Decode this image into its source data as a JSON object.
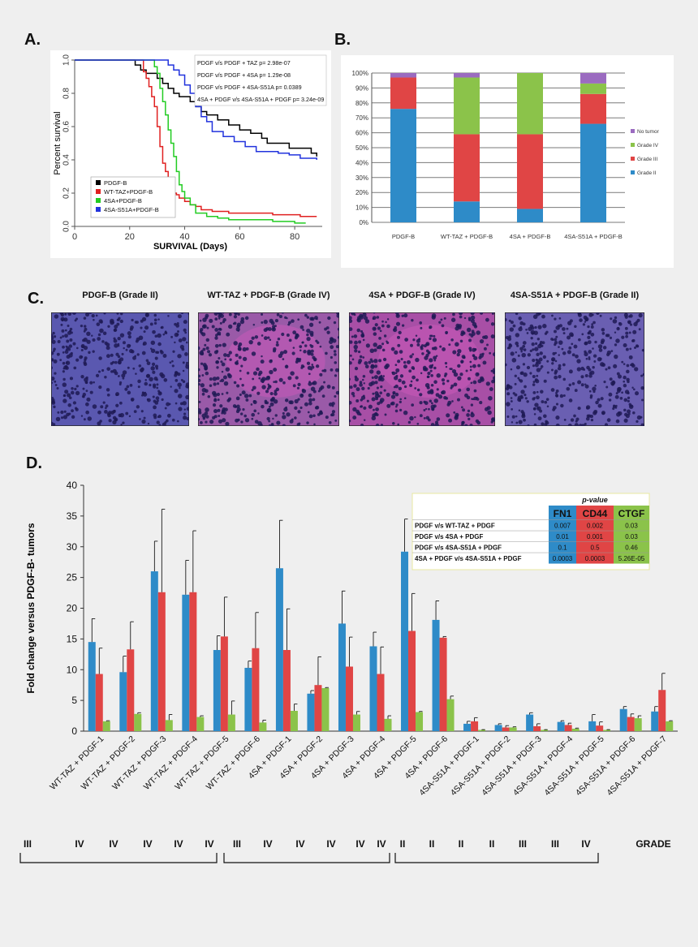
{
  "panel_labels": {
    "a": "A.",
    "b": "B.",
    "c": "C.",
    "d": "D."
  },
  "chart_data": [
    {
      "id": "A",
      "type": "line",
      "xlabel": "SURVIVAL (Days)",
      "ylabel": "Percent survival",
      "xlim": [
        0,
        90
      ],
      "ylim": [
        0,
        1.0
      ],
      "xticks": [
        "0",
        "20",
        "40",
        "60",
        "80"
      ],
      "yticks": [
        "0.0",
        "0.2",
        "0.4",
        "0.6",
        "0.8",
        "1.0"
      ],
      "legend_position": "bottom-left",
      "annotations": [
        "PDGF v/s PDGF + TAZ  p= 2.98e-07",
        "PDGF v/s PDGF + 4SA p= 1.29e-08",
        "PDGF v/s PDGF + 4SA-S51A  p= 0.0389",
        "4SA + PDGF v/s 4SA-S51A + PDGF p= 3.24e-09"
      ],
      "series": [
        {
          "name": "PDGF-B",
          "color": "#000000",
          "x": [
            0,
            20,
            22,
            24,
            26,
            28,
            30,
            32,
            34,
            36,
            38,
            40,
            42,
            44,
            46,
            48,
            50,
            52,
            56,
            60,
            64,
            68,
            70,
            74,
            78,
            82,
            86,
            88
          ],
          "y": [
            1.0,
            1.0,
            0.97,
            0.94,
            0.92,
            0.92,
            0.89,
            0.86,
            0.83,
            0.8,
            0.78,
            0.78,
            0.75,
            0.72,
            0.69,
            0.67,
            0.67,
            0.64,
            0.61,
            0.58,
            0.56,
            0.53,
            0.5,
            0.5,
            0.47,
            0.47,
            0.44,
            0.42
          ]
        },
        {
          "name": "WT-TAZ+PDGF-B",
          "color": "#e02020",
          "x": [
            0,
            24,
            25,
            26,
            27,
            28,
            29,
            30,
            31,
            32,
            33,
            34,
            35,
            36,
            37,
            38,
            40,
            42,
            44,
            46,
            50,
            56,
            62,
            72,
            82,
            88
          ],
          "y": [
            1.0,
            1.0,
            0.93,
            0.89,
            0.84,
            0.78,
            0.72,
            0.6,
            0.48,
            0.38,
            0.33,
            0.27,
            0.22,
            0.2,
            0.19,
            0.17,
            0.15,
            0.13,
            0.12,
            0.1,
            0.09,
            0.08,
            0.08,
            0.07,
            0.06,
            0.06
          ]
        },
        {
          "name": "4SA+PDGF-B",
          "color": "#22cc22",
          "x": [
            0,
            28,
            29,
            30,
            31,
            32,
            33,
            34,
            35,
            36,
            37,
            38,
            39,
            40,
            42,
            44,
            48,
            52,
            56,
            64,
            72,
            80,
            84
          ],
          "y": [
            1.0,
            1.0,
            0.96,
            0.92,
            0.83,
            0.75,
            0.67,
            0.58,
            0.5,
            0.42,
            0.33,
            0.25,
            0.21,
            0.17,
            0.13,
            0.08,
            0.06,
            0.05,
            0.04,
            0.04,
            0.03,
            0.02,
            0.02
          ]
        },
        {
          "name": "4SA-S51A+PDGF-B",
          "color": "#2233dd",
          "x": [
            0,
            32,
            34,
            36,
            38,
            40,
            42,
            44,
            46,
            48,
            50,
            54,
            58,
            62,
            66,
            70,
            74,
            78,
            82,
            88
          ],
          "y": [
            1.0,
            1.0,
            0.97,
            0.94,
            0.91,
            0.85,
            0.8,
            0.72,
            0.66,
            0.63,
            0.57,
            0.54,
            0.51,
            0.48,
            0.45,
            0.45,
            0.44,
            0.43,
            0.41,
            0.4
          ]
        }
      ]
    },
    {
      "id": "B",
      "type": "bar",
      "stacked": true,
      "ylim": [
        0,
        100
      ],
      "yticks": [
        "0%",
        "10%",
        "20%",
        "30%",
        "40%",
        "50%",
        "60%",
        "70%",
        "80%",
        "90%",
        "100%"
      ],
      "categories": [
        "PDGF-B",
        "WT-TAZ + PDGF-B",
        "4SA + PDGF-B",
        "4SA-S51A + PDGF-B"
      ],
      "legend_position": "right",
      "series": [
        {
          "name": "Grade II",
          "color": "#2e8bc8",
          "values": [
            76,
            14,
            9,
            66
          ]
        },
        {
          "name": "Grade III",
          "color": "#e04545",
          "values": [
            21,
            45,
            50,
            20
          ]
        },
        {
          "name": "Grade IV",
          "color": "#8bc34a",
          "values": [
            0,
            38,
            41,
            7
          ]
        },
        {
          "name": "No tumor",
          "color": "#9b6bc0",
          "values": [
            3,
            3,
            0,
            7
          ]
        }
      ]
    },
    {
      "id": "D",
      "type": "bar",
      "ylabel": "Fold change versus PDGF-B- tumors",
      "ylim": [
        0,
        40
      ],
      "yticks": [
        "0",
        "5",
        "10",
        "15",
        "20",
        "25",
        "30",
        "35",
        "40"
      ],
      "categories": [
        "WT-TAZ + PDGF-1",
        "WT-TAZ + PDGF-2",
        "WT-TAZ + PDGF-3",
        "WT-TAZ + PDGF-4",
        "WT-TAZ + PDGF-5",
        "WT-TAZ + PDGF-6",
        "4SA + PDGF-1",
        "4SA + PDGF-2",
        "4SA + PDGF-3",
        "4SA + PDGF-4",
        "4SA + PDGF-5",
        "4SA + PDGF-6",
        "4SA-S51A + PDGF-1",
        "4SA-S51A + PDGF-2",
        "4SA-S51A + PDGF-3",
        "4SA-S51A + PDGF-4",
        "4SA-S51A + PDGF-5",
        "4SA-S51A + PDGF-6",
        "4SA-S51A + PDGF-7"
      ],
      "series": [
        {
          "name": "FN1",
          "color": "#2e8bc8",
          "values": [
            14.5,
            9.6,
            26,
            22.2,
            13.2,
            10.3,
            26.5,
            6.1,
            17.5,
            13.8,
            29.2,
            18.1,
            1.2,
            1.0,
            2.7,
            1.5,
            1.6,
            3.6,
            3.2
          ],
          "errors": [
            3.8,
            2.6,
            4.9,
            5.6,
            2.3,
            1.1,
            7.8,
            0.5,
            5.3,
            2.3,
            5.3,
            3.1,
            0.4,
            0.2,
            0.3,
            0.2,
            1.1,
            0.4,
            0.8
          ]
        },
        {
          "name": "CD44",
          "color": "#e04545",
          "values": [
            9.3,
            13.3,
            22.6,
            22.6,
            15.4,
            13.5,
            13.2,
            7.5,
            10.5,
            9.3,
            16.3,
            15.2,
            1.6,
            0.6,
            0.8,
            1.0,
            0.9,
            2.3,
            6.7
          ],
          "errors": [
            4.2,
            4.5,
            13.5,
            10,
            6.4,
            5.8,
            6.7,
            4.6,
            4.8,
            4.4,
            6.1,
            0.2,
            0.6,
            0.3,
            0.4,
            0.3,
            0.6,
            0.5,
            2.7
          ]
        },
        {
          "name": "CTGF",
          "color": "#8bc34a",
          "values": [
            1.6,
            2.8,
            1.8,
            2.3,
            2.7,
            1.4,
            3.3,
            7.0,
            2.7,
            2.0,
            3.1,
            5.2,
            0.2,
            0.6,
            0.2,
            0.4,
            0.2,
            2.1,
            1.6
          ],
          "errors": [
            0.1,
            0.2,
            0.9,
            0.2,
            2.2,
            0.4,
            1.1,
            0.1,
            0.5,
            0.5,
            0.1,
            0.5,
            0.05,
            0.1,
            0.05,
            0.1,
            0.05,
            0.4,
            0.1
          ]
        }
      ],
      "table": {
        "title": "p-value",
        "columns": [
          "FN1",
          "CD44",
          "CTGF"
        ],
        "rows": [
          {
            "label": "PDGF v/s WT-TAZ + PDGF",
            "values": [
              "0.007",
              "0.002",
              "0.03"
            ]
          },
          {
            "label": "PDGF v/s 4SA + PDGF",
            "values": [
              "0.01",
              "0.001",
              "0.03"
            ]
          },
          {
            "label": "PDGF v/s 4SA-S51A + PDGF",
            "values": [
              "0.1",
              "0.5",
              "0.46"
            ]
          },
          {
            "label": "4SA + PDGF v/s 4SA-S51A + PDGF",
            "values": [
              "0.0003",
              "0.0003",
              "5.26E-05"
            ]
          }
        ]
      },
      "grades": [
        "III",
        "IV",
        "IV",
        "IV",
        "IV",
        "IV",
        "III",
        "IV",
        "IV",
        "IV",
        "IV",
        "IV",
        "II",
        "II",
        "II",
        "II",
        "III",
        "III",
        "IV"
      ],
      "grade_label": "GRADE"
    }
  ],
  "histology": [
    {
      "title": "PDGF-B (Grade II)",
      "tint": "#5a58b0"
    },
    {
      "title": "WT-TAZ + PDGF-B (Grade IV)",
      "tint": "#9a5aa8"
    },
    {
      "title": "4SA + PDGF-B (Grade IV)",
      "tint": "#a84fa6"
    },
    {
      "title": "4SA-S51A + PDGF-B (Grade II)",
      "tint": "#6a5fb2"
    }
  ]
}
